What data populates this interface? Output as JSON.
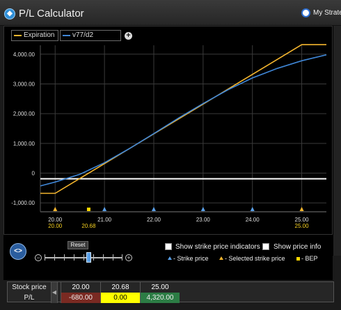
{
  "window": {
    "title": "P/L Calculator",
    "strategy_link": "My Strate"
  },
  "legend": [
    {
      "label": "Expiration",
      "color": "#f5b62e"
    },
    {
      "label": "v77/d2",
      "color": "#3f86d6"
    }
  ],
  "add_label": "+",
  "chart_data": {
    "type": "line",
    "title": "",
    "xlabel": "",
    "ylabel": "",
    "xlim": [
      19.7,
      25.5
    ],
    "ylim": [
      -1300,
      4300
    ],
    "x_ticks": [
      "20.00",
      "21.00",
      "22.00",
      "23.00",
      "24.00",
      "25.00"
    ],
    "x_tick_values": [
      20,
      21,
      22,
      23,
      24,
      25
    ],
    "y_ticks": [
      "4,000.00",
      "3,000.00",
      "2,000.00",
      "1,000.00",
      "0",
      "-1,000.00"
    ],
    "y_tick_values": [
      4000,
      3000,
      2000,
      1000,
      0,
      -1000
    ],
    "zero_line": -190,
    "selected_labels": [
      "20.00",
      "20.68",
      "25.00"
    ],
    "series": [
      {
        "name": "Expiration",
        "color": "#f5b62e",
        "x": [
          19.7,
          20.0,
          25.0,
          25.5
        ],
        "y": [
          -680,
          -680,
          4320,
          4320
        ]
      },
      {
        "name": "v77/d2",
        "color": "#3f86d6",
        "x": [
          19.7,
          20.0,
          20.5,
          21.0,
          21.5,
          22.0,
          22.5,
          23.0,
          23.5,
          24.0,
          24.5,
          25.0,
          25.5
        ],
        "y": [
          -430,
          -300,
          -40,
          350,
          820,
          1330,
          1850,
          2340,
          2800,
          3200,
          3520,
          3780,
          3980
        ]
      }
    ],
    "strike_markers": [
      21,
      22,
      23,
      24
    ],
    "selected_strike_markers": [
      20,
      25
    ],
    "bep_markers": [
      20.68
    ]
  },
  "controls": {
    "reset_label": "Reset",
    "nav_label": "<>",
    "zoom_out": "−",
    "zoom_in": "+",
    "zoom_level": 0.57,
    "show_strike_indicators": "Show strike price indicators",
    "show_price_info": "Show price info",
    "key_strike": "- Strike price",
    "key_selected": "- Selected strike price",
    "key_bep": "- BEP"
  },
  "table": {
    "row1_label": "Stock price",
    "row2_label": "P/L",
    "collapse": "◀",
    "cells": [
      {
        "price": "20.00",
        "pl": "-680.00",
        "bg": "#7a2a22",
        "fg": "#f0f0f0"
      },
      {
        "price": "20.68",
        "pl": "0.00",
        "bg": "#ffff00",
        "fg": "#000000"
      },
      {
        "price": "25.00",
        "pl": "4,320.00",
        "bg": "#2c7d45",
        "fg": "#f0f0f0"
      }
    ]
  },
  "colors": {
    "expiration": "#f5b62e",
    "v77": "#3f86d6",
    "strike_marker": "#5aa0e8",
    "selected_marker": "#f5b62e",
    "bep_marker": "#ffd700",
    "zero_line": "#ffffff"
  }
}
